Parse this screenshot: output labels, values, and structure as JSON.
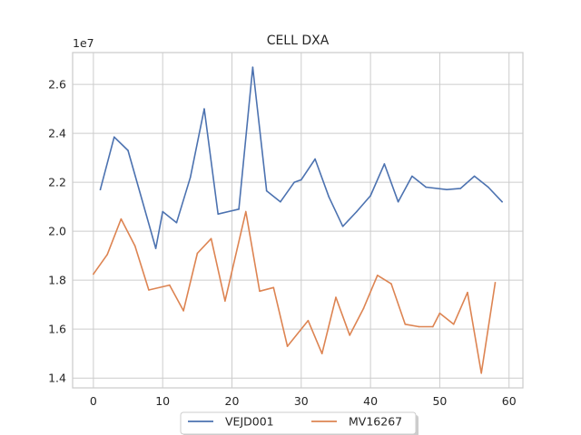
{
  "chart_data": {
    "type": "line",
    "title": "CELL DXA",
    "xlabel": "",
    "ylabel": "",
    "y_offset_label": "1e7",
    "xlim": [
      -3,
      62
    ],
    "ylim": [
      1.36,
      2.73
    ],
    "x_ticks": [
      0,
      10,
      20,
      30,
      40,
      50,
      60
    ],
    "y_ticks": [
      1.4,
      1.6,
      1.8,
      2.0,
      2.2,
      2.4,
      2.6
    ],
    "grid": true,
    "legend_position": "bottom-center",
    "series": [
      {
        "name": "VEJD001",
        "color": "#4c72b0",
        "x": [
          1,
          3,
          5,
          7,
          9,
          10,
          12,
          14,
          16,
          18,
          21,
          23,
          25,
          27,
          29,
          30,
          32,
          34,
          36,
          38,
          40,
          42,
          44,
          46,
          48,
          51,
          53,
          55,
          57,
          59
        ],
        "y": [
          2.17,
          2.385,
          2.33,
          2.13,
          1.93,
          2.08,
          2.035,
          2.22,
          2.5,
          2.07,
          2.09,
          2.67,
          2.165,
          2.12,
          2.2,
          2.21,
          2.295,
          2.14,
          2.02,
          2.08,
          2.145,
          2.275,
          2.12,
          2.225,
          2.18,
          2.17,
          2.175,
          2.225,
          2.18,
          2.12
        ]
      },
      {
        "name": "MV16267",
        "color": "#dd8452",
        "x": [
          0,
          2,
          4,
          6,
          8,
          11,
          13,
          15,
          17,
          19,
          22,
          24,
          26,
          28,
          31,
          33,
          35,
          37,
          39,
          41,
          43,
          45,
          47,
          49,
          50,
          52,
          54,
          56,
          58
        ],
        "y": [
          1.825,
          1.905,
          2.05,
          1.94,
          1.76,
          1.78,
          1.675,
          1.91,
          1.97,
          1.715,
          2.08,
          1.755,
          1.77,
          1.53,
          1.635,
          1.5,
          1.73,
          1.575,
          1.685,
          1.82,
          1.785,
          1.62,
          1.61,
          1.61,
          1.665,
          1.62,
          1.75,
          1.42,
          1.79
        ]
      }
    ]
  }
}
